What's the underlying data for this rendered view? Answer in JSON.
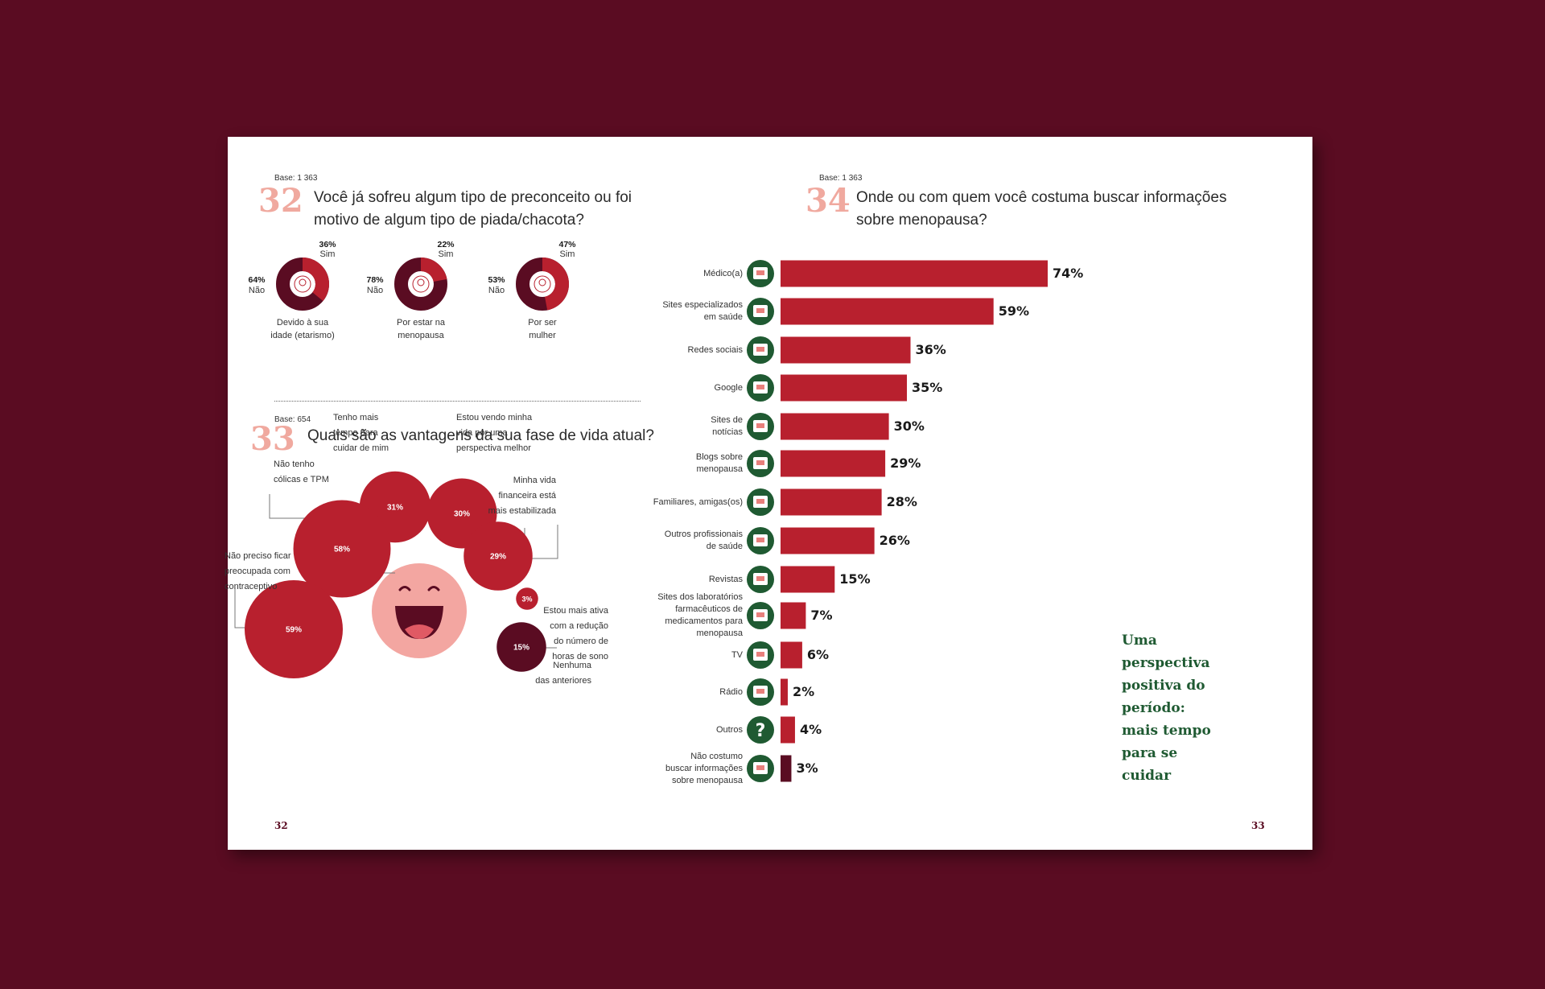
{
  "colors": {
    "background": "#5a0c22",
    "red": "#b8202e",
    "dark": "#5a0c22",
    "pink": "#f0a99f",
    "green": "#1f5a32"
  },
  "q32": {
    "base": "Base: 1 363",
    "number": "32",
    "title_line1": "Você já sofreu algum tipo de preconceito ou foi",
    "title_line2": "motivo de algum tipo de piada/chacota?",
    "donuts": [
      {
        "yes_pct": "36%",
        "yes_label": "Sim",
        "no_pct": "64%",
        "no_label": "Não",
        "yes_value": 36,
        "cap1": "Devido à sua",
        "cap2": "idade (etarismo)",
        "icon": "face-icon"
      },
      {
        "yes_pct": "22%",
        "yes_label": "Sim",
        "no_pct": "78%",
        "no_label": "Não",
        "yes_value": 22,
        "cap1": "Por estar na",
        "cap2": "menopausa",
        "icon": "clock-icon"
      },
      {
        "yes_pct": "47%",
        "yes_label": "Sim",
        "no_pct": "53%",
        "no_label": "Não",
        "yes_value": 47,
        "cap1": "Por ser",
        "cap2": "mulher",
        "icon": "woman-icon"
      }
    ]
  },
  "q33": {
    "base": "Base: 654",
    "number": "33",
    "title": "Quais são as vantagens da sua fase de vida atual?",
    "bubbles": [
      {
        "value": 31,
        "label": "31%",
        "lines": [
          "Tenho mais",
          "tempo para",
          "cuidar de mim"
        ]
      },
      {
        "value": 30,
        "label": "30%",
        "lines": [
          "Estou vendo minha",
          "vida por uma",
          "perspectiva melhor"
        ]
      },
      {
        "value": 58,
        "label": "58%",
        "lines": [
          "Não tenho",
          "cólicas e TPM"
        ]
      },
      {
        "value": 29,
        "label": "29%",
        "lines": [
          "Minha vida",
          "financeira está",
          "mais estabilizada"
        ]
      },
      {
        "value": 59,
        "label": "59%",
        "lines": [
          "Não preciso ficar",
          "preocupada com",
          "contraceptivo"
        ]
      },
      {
        "value": 3,
        "label": "3%",
        "lines": [
          "Estou mais ativa",
          "com a redução",
          "do número de",
          "horas de sono"
        ]
      },
      {
        "value": 15,
        "label": "15%",
        "lines": [
          "Nenhuma",
          "das anteriores"
        ]
      }
    ]
  },
  "q34": {
    "base": "Base: 1 363",
    "number": "34",
    "title_line1": "Onde ou com quem você costuma buscar informações",
    "title_line2": "sobre menopausa?"
  },
  "chart_data": {
    "type": "bar",
    "orientation": "horizontal",
    "categories": [
      "Médico(a)",
      "Sites especializados em saúde",
      "Redes sociais",
      "Google",
      "Sites de notícias",
      "Blogs sobre menopausa",
      "Familiares, amigas(os)",
      "Outros profissionais de saúde",
      "Revistas",
      "Sites dos laboratórios farmacêuticos de medicamentos para menopausa",
      "TV",
      "Rádio",
      "Outros",
      "Não costumo buscar informações sobre menopausa"
    ],
    "values": [
      74,
      59,
      36,
      35,
      30,
      29,
      28,
      26,
      15,
      7,
      6,
      2,
      4,
      3
    ],
    "value_labels": [
      "74%",
      "59%",
      "36%",
      "35%",
      "30%",
      "29%",
      "28%",
      "26%",
      "15%",
      "7%",
      "6%",
      "2%",
      "4%",
      "3%"
    ],
    "label_lines": [
      [
        "Médico(a)"
      ],
      [
        "Sites especializados",
        "em saúde"
      ],
      [
        "Redes sociais"
      ],
      [
        "Google"
      ],
      [
        "Sites de",
        "notícias"
      ],
      [
        "Blogs sobre",
        "menopausa"
      ],
      [
        "Familiares, amigas(os)"
      ],
      [
        "Outros profissionais",
        "de saúde"
      ],
      [
        "Revistas"
      ],
      [
        "Sites dos laboratórios",
        "farmacêuticos de",
        "medicamentos para",
        "menopausa"
      ],
      [
        "TV"
      ],
      [
        "Rádio"
      ],
      [
        "Outros"
      ],
      [
        "Não costumo",
        "buscar informações",
        "sobre menopausa"
      ]
    ],
    "icons": [
      "doctor-icon",
      "monitor-icon",
      "social-icon",
      "search-icon",
      "news-icon",
      "blog-icon",
      "family-icon",
      "nurse-icon",
      "magazine-icon",
      "pharma-icon",
      "tv-icon",
      "radio-icon",
      "question-icon",
      "hand-icon"
    ],
    "xlim": [
      0,
      74
    ]
  },
  "quote": {
    "lines": [
      "Uma",
      "perspectiva",
      "positiva do",
      "período:",
      "mais tempo",
      "para se",
      "cuidar"
    ]
  },
  "pages": {
    "left": "32",
    "right": "33"
  }
}
